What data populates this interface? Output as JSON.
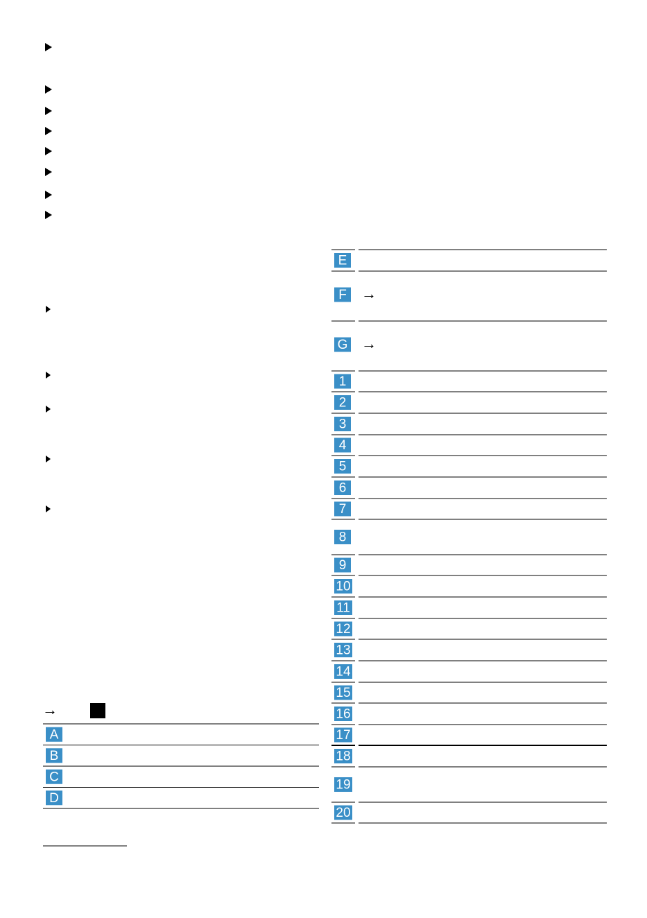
{
  "left_legend": {
    "arrow": "→",
    "rows": [
      "A",
      "B",
      "C",
      "D"
    ]
  },
  "right_table": {
    "rows": [
      {
        "label": "E"
      },
      {
        "label": "F",
        "arrow": "→"
      },
      {
        "label": "G",
        "arrow": "→"
      },
      {
        "label": "1"
      },
      {
        "label": "2"
      },
      {
        "label": "3"
      },
      {
        "label": "4"
      },
      {
        "label": "5"
      },
      {
        "label": "6"
      },
      {
        "label": "7"
      },
      {
        "label": "8"
      },
      {
        "label": "9"
      },
      {
        "label": "10"
      },
      {
        "label": "11"
      },
      {
        "label": "12"
      },
      {
        "label": "13"
      },
      {
        "label": "14"
      },
      {
        "label": "15"
      },
      {
        "label": "16"
      },
      {
        "label": "17"
      },
      {
        "label": "18"
      },
      {
        "label": "19"
      },
      {
        "label": "20"
      }
    ]
  }
}
